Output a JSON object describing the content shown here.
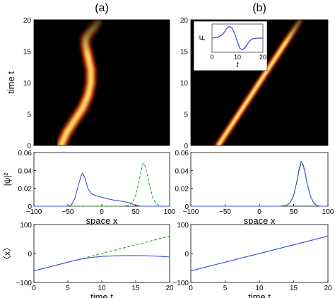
{
  "figure": {
    "label_a": "(a)",
    "label_b": "(b)"
  },
  "colors": {
    "blue": "#3b4de0",
    "green": "#2aa02a",
    "heat_bg": "#000000",
    "heat_core": "#fff5a0",
    "heat_mid": "#ff9a10",
    "heat_edge": "#b01c08"
  },
  "chart_data": [
    {
      "id": "a-heatmap",
      "type": "heatmap",
      "xlabel": "",
      "ylabel": "time t",
      "ylim": [
        0,
        20
      ],
      "yticks": [
        "0",
        "5",
        "10",
        "15",
        "20"
      ],
      "ridge": [
        [
          -60,
          0
        ],
        [
          -52,
          2
        ],
        [
          -40,
          4
        ],
        [
          -28,
          6
        ],
        [
          -20,
          8
        ],
        [
          -16,
          10
        ],
        [
          -16,
          12
        ],
        [
          -20,
          14
        ],
        [
          -24,
          16
        ],
        [
          -24,
          17
        ],
        [
          -18,
          18
        ],
        [
          -10,
          19
        ],
        [
          -4,
          20
        ]
      ],
      "fade_from_t": 15
    },
    {
      "id": "b-heatmap",
      "type": "heatmap",
      "xlabel": "",
      "ylabel": "",
      "ylim": [
        0,
        20
      ],
      "yticks": [
        "0",
        "5",
        "10",
        "15",
        "20"
      ],
      "ridge": [
        [
          -60,
          0
        ],
        [
          -48,
          2
        ],
        [
          -36,
          4
        ],
        [
          -24,
          6
        ],
        [
          -12,
          8
        ],
        [
          0,
          10
        ],
        [
          12,
          12
        ],
        [
          24,
          14
        ],
        [
          36,
          16
        ],
        [
          48,
          18
        ],
        [
          60,
          20
        ]
      ],
      "fade_from_t": 17,
      "inset": {
        "type": "line",
        "xlabel": "t",
        "ylabel": "F",
        "xlim": [
          0,
          20
        ],
        "xticks": [
          "0",
          "10",
          "20"
        ],
        "series": [
          {
            "x": [
              0,
              2,
              4,
              5,
              6,
              7,
              8,
              9,
              10,
              11,
              12,
              13,
              14,
              15,
              16,
              18,
              20
            ],
            "y": [
              0,
              0.03,
              0.18,
              0.35,
              0.55,
              0.62,
              0.5,
              0.2,
              -0.2,
              -0.55,
              -0.62,
              -0.5,
              -0.3,
              -0.12,
              -0.03,
              0,
              0
            ]
          }
        ]
      }
    },
    {
      "id": "a-density",
      "type": "line",
      "xlabel": "space x",
      "ylabel": "|ψ|²",
      "xlim": [
        -100,
        100
      ],
      "ylim": [
        0,
        0.06
      ],
      "xticks": [
        "−100",
        "−50",
        "0",
        "50",
        "100"
      ],
      "yticks": [
        "0",
        "0.02",
        "0.04",
        "0.06"
      ],
      "series": [
        {
          "style": "solid",
          "color": "#3b4de0",
          "x": [
            -100,
            -50,
            -45,
            -40,
            -35,
            -30,
            -28,
            -25,
            -22,
            -20,
            -15,
            -10,
            -5,
            0,
            10,
            20,
            30,
            40,
            45,
            50,
            55,
            60,
            100
          ],
          "y": [
            0,
            0,
            0.001,
            0.008,
            0.022,
            0.035,
            0.037,
            0.032,
            0.024,
            0.019,
            0.014,
            0.012,
            0.011,
            0.01,
            0.008,
            0.0065,
            0.0055,
            0.004,
            0.0025,
            0.001,
            0.0003,
            0,
            0
          ]
        },
        {
          "style": "dashed",
          "color": "#2aa02a",
          "x": [
            -100,
            30,
            40,
            45,
            50,
            55,
            58,
            61,
            64,
            67,
            70,
            75,
            80,
            85,
            90,
            100
          ],
          "y": [
            0,
            0,
            0.001,
            0.004,
            0.012,
            0.028,
            0.04,
            0.048,
            0.045,
            0.036,
            0.024,
            0.01,
            0.003,
            0.0005,
            0,
            0
          ]
        }
      ]
    },
    {
      "id": "b-density",
      "type": "line",
      "xlabel": "space x",
      "ylabel": "",
      "xlim": [
        -100,
        100
      ],
      "ylim": [
        0,
        0.06
      ],
      "xticks": [
        "−100",
        "−50",
        "0",
        "50",
        "100"
      ],
      "yticks": [
        "0",
        "0.02",
        "0.04",
        "0.06"
      ],
      "series": [
        {
          "style": "solid",
          "color": "#3b4de0",
          "x": [
            -100,
            30,
            40,
            45,
            50,
            55,
            58,
            61,
            64,
            67,
            70,
            75,
            80,
            85,
            90,
            100
          ],
          "y": [
            0,
            0,
            0.001,
            0.004,
            0.012,
            0.029,
            0.042,
            0.05,
            0.046,
            0.036,
            0.024,
            0.01,
            0.003,
            0.0005,
            0,
            0
          ]
        },
        {
          "style": "dashed",
          "color": "#2aa02a",
          "x": [
            -100,
            30,
            40,
            45,
            50,
            55,
            58,
            61,
            64,
            67,
            70,
            75,
            80,
            85,
            90,
            100
          ],
          "y": [
            0,
            0,
            0.001,
            0.004,
            0.012,
            0.028,
            0.04,
            0.048,
            0.045,
            0.036,
            0.024,
            0.01,
            0.003,
            0.0005,
            0,
            0
          ]
        }
      ]
    },
    {
      "id": "a-mean",
      "type": "line",
      "xlabel": "time t",
      "ylabel": "〈x〉",
      "xlim": [
        0,
        20
      ],
      "ylim": [
        -100,
        100
      ],
      "xticks": [
        "0",
        "5",
        "10",
        "15",
        "20"
      ],
      "yticks": [
        "−100",
        "0",
        "100"
      ],
      "series": [
        {
          "style": "solid",
          "color": "#3b4de0",
          "x": [
            0,
            2,
            4,
            6,
            7,
            8,
            10,
            12,
            14,
            16,
            18,
            20
          ],
          "y": [
            -60,
            -48,
            -36,
            -24,
            -19,
            -15,
            -10,
            -8,
            -7,
            -7.5,
            -9,
            -12
          ]
        },
        {
          "style": "dashed",
          "color": "#2aa02a",
          "x": [
            0,
            20
          ],
          "y": [
            -60,
            60
          ]
        }
      ]
    },
    {
      "id": "b-mean",
      "type": "line",
      "xlabel": "time t",
      "ylabel": "",
      "xlim": [
        0,
        20
      ],
      "ylim": [
        -100,
        100
      ],
      "xticks": [
        "0",
        "5",
        "10",
        "15",
        "20"
      ],
      "yticks": [
        "−100",
        "0",
        "100"
      ],
      "series": [
        {
          "style": "solid",
          "color": "#3b4de0",
          "x": [
            0,
            20
          ],
          "y": [
            -60,
            60
          ]
        },
        {
          "style": "dashed",
          "color": "#2aa02a",
          "x": [
            0,
            20
          ],
          "y": [
            -60,
            60
          ]
        }
      ]
    }
  ]
}
